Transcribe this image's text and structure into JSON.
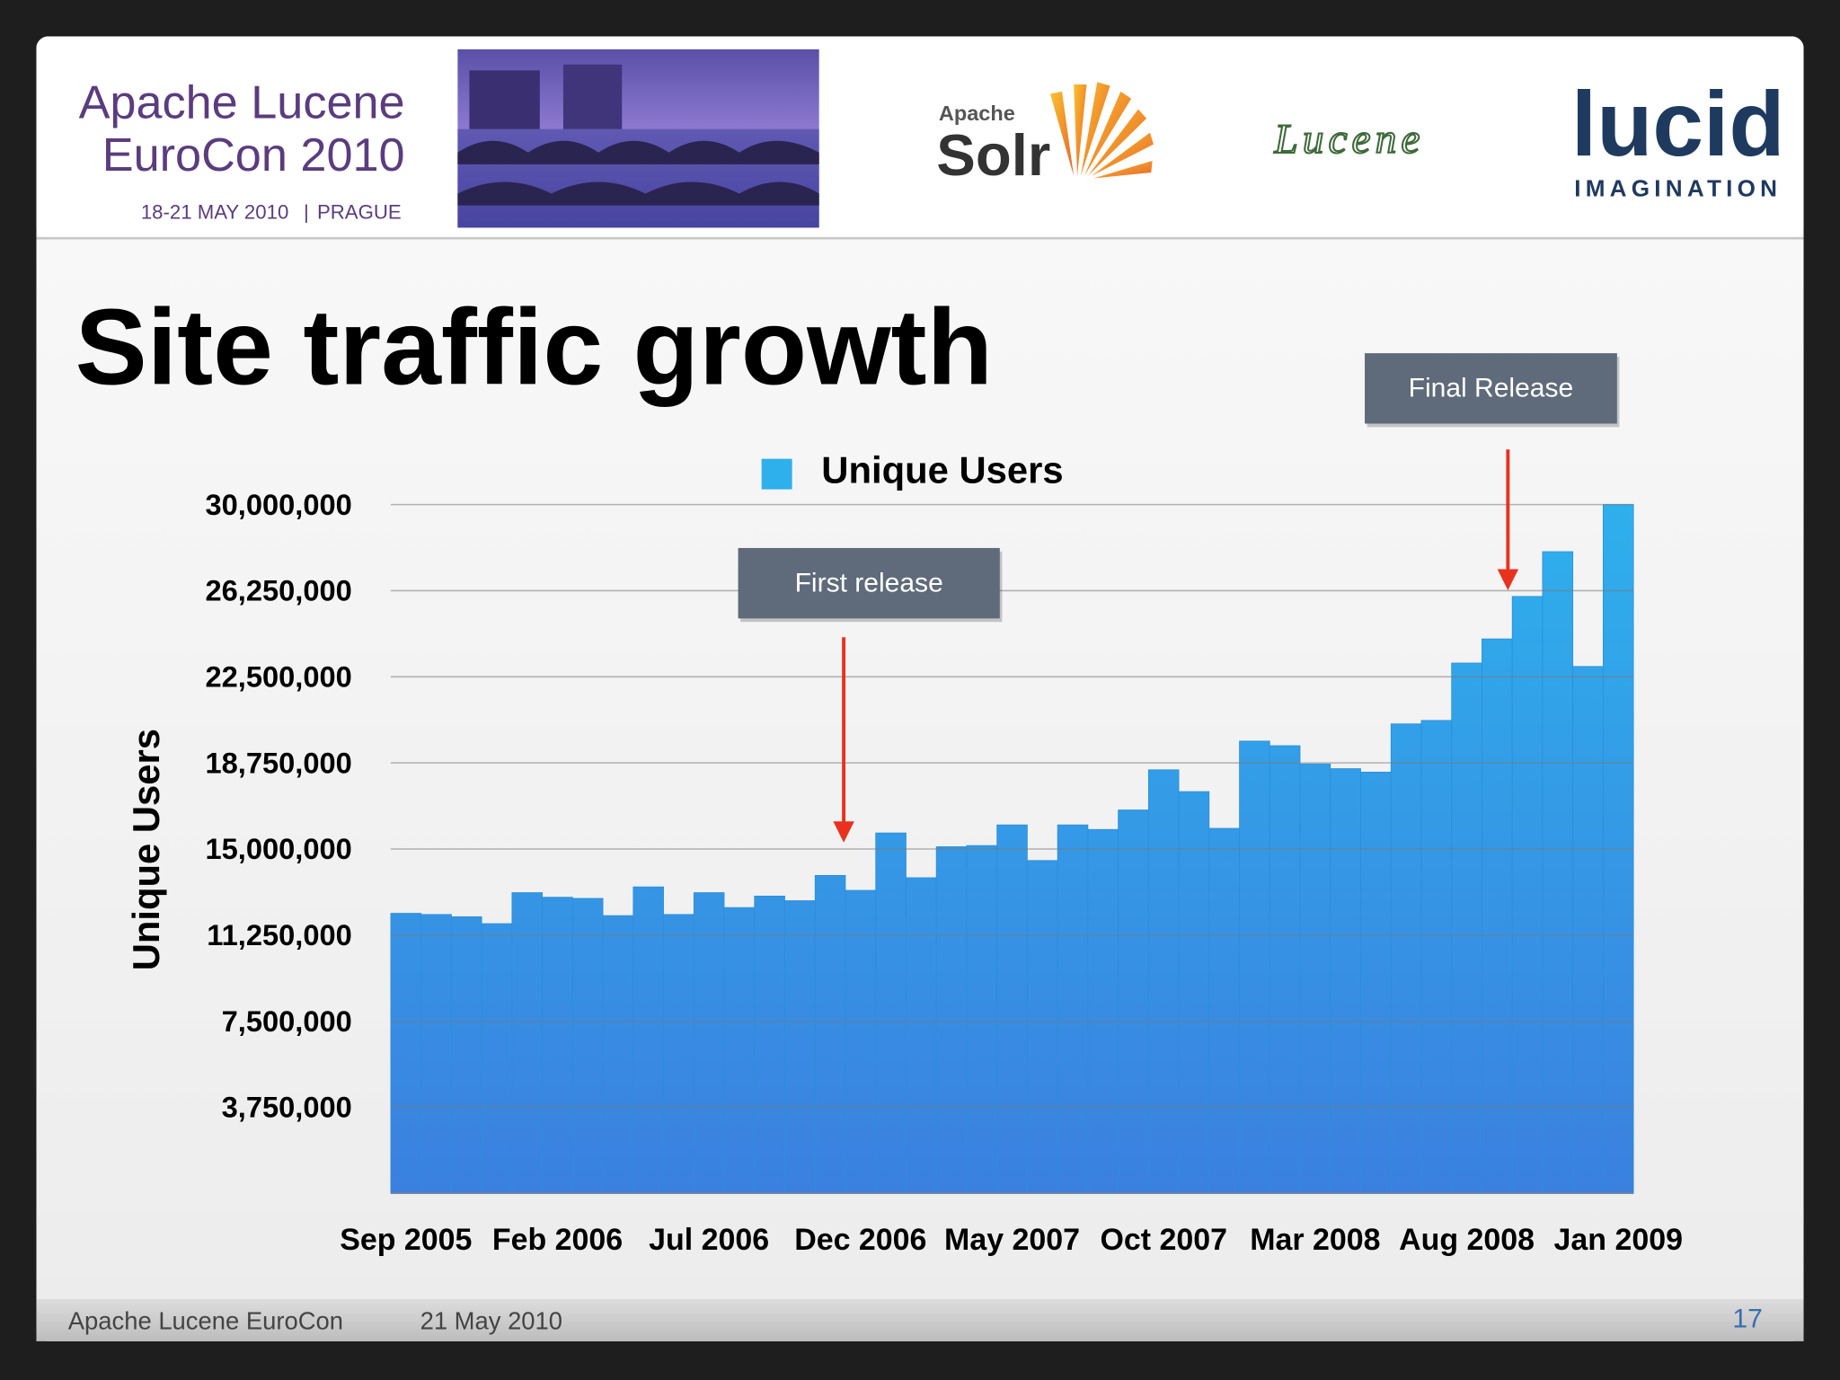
{
  "header": {
    "event_line1": "Apache Lucene",
    "event_line2": "EuroCon 2010",
    "event_date": "18-21 MAY 2010",
    "event_place": "PRAGUE",
    "solr_small": "Apache",
    "solr": "Solr",
    "lucene": "Lucene",
    "lucid": "lucid",
    "imagination": "IMAGINATION"
  },
  "footer": {
    "left": "Apache Lucene EuroCon",
    "date": "21 May 2010",
    "page": "17"
  },
  "chart_data": {
    "type": "bar",
    "title": "Site traffic growth",
    "ylabel": "Unique Users",
    "categories": [
      "Sep 2005",
      null,
      null,
      null,
      null,
      "Feb 2006",
      null,
      null,
      null,
      null,
      "Jul 2006",
      null,
      null,
      null,
      null,
      "Dec 2006",
      null,
      null,
      null,
      null,
      "May 2007",
      null,
      null,
      null,
      null,
      "Oct 2007",
      null,
      null,
      null,
      null,
      "Mar 2008",
      null,
      null,
      null,
      null,
      "Aug 2008",
      null,
      null,
      null,
      null,
      "Jan 2009"
    ],
    "series": [
      {
        "name": "Unique Users",
        "color": "#2eb0ec",
        "values": [
          12200000,
          12150000,
          12050000,
          11750000,
          13100000,
          12900000,
          12850000,
          12100000,
          13350000,
          12150000,
          13100000,
          12450000,
          12950000,
          12750000,
          13850000,
          13200000,
          15700000,
          13750000,
          15100000,
          15150000,
          16050000,
          14500000,
          16050000,
          15850000,
          16700000,
          18450000,
          17500000,
          15900000,
          19700000,
          19500000,
          18700000,
          18500000,
          18350000,
          20450000,
          20600000,
          23100000,
          24150000,
          26000000,
          27950000,
          22950000,
          30000000
        ]
      }
    ],
    "ylim": [
      0,
      30000000
    ],
    "yticks": [
      {
        "value": 3750000,
        "label": "3,750,000"
      },
      {
        "value": 7500000,
        "label": "7,500,000"
      },
      {
        "value": 11250000,
        "label": "11,250,000"
      },
      {
        "value": 15000000,
        "label": "15,000,000"
      },
      {
        "value": 18750000,
        "label": "18,750,000"
      },
      {
        "value": 22500000,
        "label": "22,500,000"
      },
      {
        "value": 26250000,
        "label": "26,250,000"
      },
      {
        "value": 30000000,
        "label": "30,000,000"
      }
    ],
    "grid": true,
    "legend": "top",
    "annotations": [
      {
        "text": "First release"
      },
      {
        "text": "Final Release"
      }
    ]
  }
}
